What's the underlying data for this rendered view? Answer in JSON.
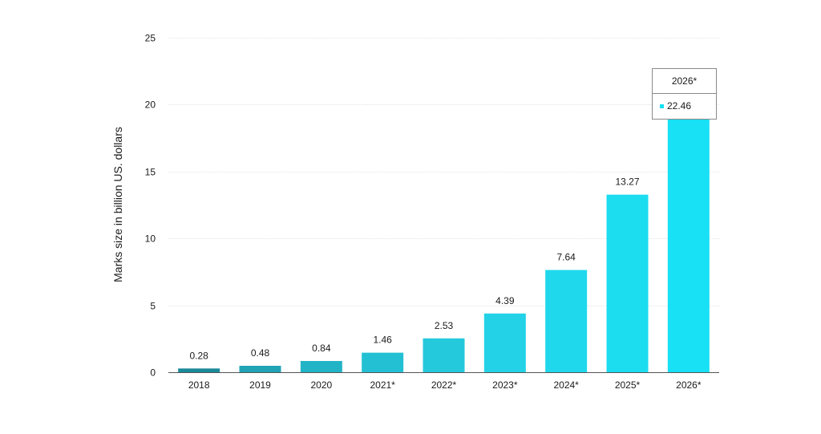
{
  "chart_data": {
    "type": "bar",
    "categories": [
      "2018",
      "2019",
      "2020",
      "2021*",
      "2022*",
      "2023*",
      "2024*",
      "2025*",
      "2026*"
    ],
    "values": [
      0.28,
      0.48,
      0.84,
      1.46,
      2.53,
      4.39,
      7.64,
      13.27,
      22.46
    ],
    "data_labels": [
      "0.28",
      "0.48",
      "0.84",
      "1.46",
      "2.53",
      "4.39",
      "7.64",
      "13.27",
      ""
    ],
    "bar_colors": [
      "#1a8a9a",
      "#1fa3b5",
      "#21b4c6",
      "#23c0d3",
      "#24c9dc",
      "#23d2e6",
      "#1fd8ec",
      "#1cdcf0",
      "#18e0f5"
    ],
    "title": "",
    "xlabel": "",
    "ylabel": "Marks size in billion US. dollars",
    "ylim": [
      0,
      25
    ],
    "yticks": [
      "0",
      "5",
      "10",
      "15",
      "20",
      "25"
    ],
    "ytick_values": [
      0,
      5,
      10,
      15,
      20,
      25
    ],
    "grid": true,
    "legend": "none"
  },
  "tooltip": {
    "category": "2026*",
    "value": "22.46",
    "swatch_color": "#18e0f5"
  }
}
